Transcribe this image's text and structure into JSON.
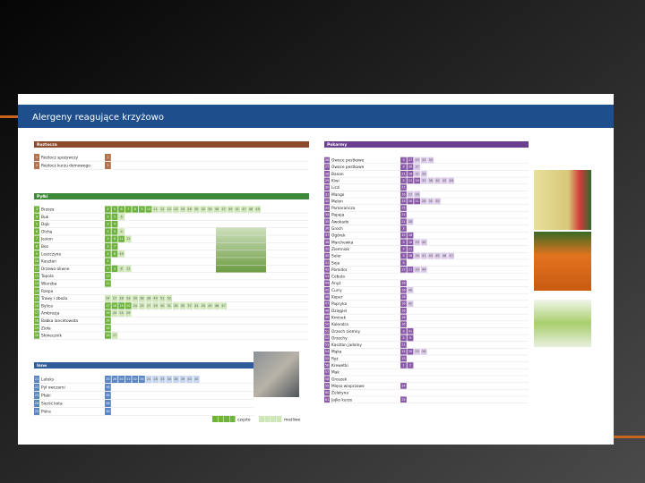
{
  "document": {
    "title": "Alergeny reagujące krzyżowo",
    "legend": {
      "often": "często",
      "possible": "możliwe"
    },
    "sections": [
      {
        "title": "Roztocza",
        "color": "#8b4a2b",
        "often_color": "#b5724a",
        "possible_color": "#e3c7b4",
        "rows": [
          {
            "no": 1,
            "name": "Roztocz spożywczy",
            "often": [
              2
            ],
            "possible": []
          },
          {
            "no": 2,
            "name": "Roztocz kurzu domowego",
            "often": [
              1
            ],
            "possible": []
          }
        ]
      },
      {
        "title": "Pyłki",
        "color": "#3f8a3a",
        "often_color": "#6fb33f",
        "possible_color": "#cfe6b8",
        "rows": [
          {
            "no": 3,
            "name": "Brzoza",
            "often": [
              4,
              5,
              6,
              7,
              8,
              9,
              10
            ],
            "possible": [
              11,
              12,
              13,
              23,
              24,
              26,
              30,
              32,
              35,
              36,
              37,
              39,
              41,
              47,
              48,
              49
            ]
          },
          {
            "no": 4,
            "name": "Buk",
            "often": [
              3,
              5
            ],
            "possible": [
              6
            ]
          },
          {
            "no": 5,
            "name": "Dąb",
            "often": [
              3,
              4
            ],
            "possible": []
          },
          {
            "no": 6,
            "name": "Olcha",
            "often": [
              3,
              9
            ],
            "possible": [
              4
            ]
          },
          {
            "no": 7,
            "name": "Jesion",
            "often": [
              3,
              8,
              11
            ],
            "possible": [
              12
            ]
          },
          {
            "no": 8,
            "name": "Bez",
            "often": [
              3,
              7
            ],
            "possible": []
          },
          {
            "no": 9,
            "name": "Leszczyna",
            "often": [
              3,
              6
            ],
            "possible": [
              49
            ]
          },
          {
            "no": 10,
            "name": "Kasztan",
            "often": [
              3
            ],
            "possible": []
          },
          {
            "no": 11,
            "name": "Drzewo oliwne",
            "often": [
              7,
              3
            ],
            "possible": [
              8,
              12
            ]
          },
          {
            "no": 12,
            "name": "Topola",
            "often": [
              13
            ],
            "possible": []
          },
          {
            "no": 13,
            "name": "Wierzba",
            "often": [
              12
            ],
            "possible": []
          },
          {
            "no": 14,
            "name": "Rzepa",
            "often": [],
            "possible": []
          },
          {
            "no": 15,
            "name": "Trawy / zboża",
            "often": [],
            "possible": [
              24,
              27,
              28,
              33,
              34,
              38,
              39,
              40,
              51,
              52
            ]
          },
          {
            "no": 16,
            "name": "Bylica",
            "often": [
              17,
              18,
              19,
              20
            ],
            "possible": [
              24,
              25,
              27,
              29,
              30,
              31,
              34,
              35,
              37,
              41,
              43,
              45,
              46,
              47
            ]
          },
          {
            "no": 17,
            "name": "Ambrozja",
            "often": [
              16
            ],
            "possible": [
              20,
              25,
              29
            ]
          },
          {
            "no": 18,
            "name": "Babka lancetowata",
            "often": [
              16
            ],
            "possible": []
          },
          {
            "no": 19,
            "name": "Zioła",
            "often": [
              16
            ],
            "possible": []
          },
          {
            "no": 20,
            "name": "Słonecznik",
            "often": [
              16
            ],
            "possible": [
              17
            ]
          }
        ]
      },
      {
        "title": "Inne",
        "color": "#2f5d9a",
        "often_color": "#5a86c4",
        "possible_color": "#c6d6ee",
        "rows": [
          {
            "no": 21,
            "name": "Lateks",
            "often": [
              25,
              26,
              30,
              31,
              32,
              36
            ],
            "possible": [
              24,
              28,
              33,
              34,
              38,
              39,
              40,
              45
            ]
          },
          {
            "no": 22,
            "name": "Pył owczarni",
            "often": [
              56
            ],
            "possible": []
          },
          {
            "no": 23,
            "name": "Ptaki",
            "often": [
              58
            ],
            "possible": []
          },
          {
            "no": 24,
            "name": "Sierść kota",
            "often": [
              56
            ],
            "possible": []
          },
          {
            "no": 25,
            "name": "Pióra",
            "often": [
              58
            ],
            "possible": []
          }
        ]
      },
      {
        "title": "Pokarmy",
        "color": "#6a3f8f",
        "often_color": "#8a5aa8",
        "possible_color": "#d9c8e8",
        "rows": [
          {
            "no": 26,
            "name": "Owoce pestkowe",
            "often": [
              3,
              27
            ],
            "possible": [
              29,
              33,
              35
            ]
          },
          {
            "no": 27,
            "name": "Owoce pestkowe",
            "often": [
              3,
              26
            ],
            "possible": [
              37
            ]
          },
          {
            "no": 28,
            "name": "Banan",
            "often": [
              21,
              16
            ],
            "possible": [
              31,
              33
            ]
          },
          {
            "no": 29,
            "name": "Kiwi",
            "often": [
              3,
              21,
              16
            ],
            "possible": [
              32,
              36,
              40,
              43,
              48
            ]
          },
          {
            "no": 30,
            "name": "Liczi",
            "often": [
              21
            ],
            "possible": []
          },
          {
            "no": 31,
            "name": "Mango",
            "often": [
              16
            ],
            "possible": [
              21,
              28
            ]
          },
          {
            "no": 32,
            "name": "Melon",
            "often": [
              15,
              16,
              21
            ],
            "possible": [
              28,
              31,
              35
            ]
          },
          {
            "no": 33,
            "name": "Pomarańcza",
            "often": [
              15
            ],
            "possible": []
          },
          {
            "no": 34,
            "name": "Papaja",
            "often": [
              21
            ],
            "possible": []
          },
          {
            "no": 35,
            "name": "Awokado",
            "often": [
              21
            ],
            "possible": [
              28
            ]
          },
          {
            "no": 36,
            "name": "Groch",
            "often": [
              3
            ],
            "possible": []
          },
          {
            "no": 37,
            "name": "Ogórek",
            "often": [
              15,
              16
            ],
            "possible": []
          },
          {
            "no": 38,
            "name": "Marchewka",
            "often": [
              3,
              16
            ],
            "possible": [
              39,
              40
            ]
          },
          {
            "no": 39,
            "name": "Ziemniak",
            "often": [
              3,
              21
            ],
            "possible": []
          },
          {
            "no": 40,
            "name": "Seler",
            "often": [
              3,
              16
            ],
            "possible": [
              38,
              41,
              43,
              45,
              46,
              47
            ]
          },
          {
            "no": 41,
            "name": "Soja",
            "often": [
              3
            ],
            "possible": []
          },
          {
            "no": 42,
            "name": "Pomidor",
            "often": [
              15,
              21
            ],
            "possible": [
              39,
              44
            ]
          },
          {
            "no": 43,
            "name": "Cebula",
            "often": [],
            "possible": []
          },
          {
            "no": 44,
            "name": "Anyż",
            "often": [
              16
            ],
            "possible": []
          },
          {
            "no": 45,
            "name": "Curry",
            "often": [
              16
            ],
            "possible": [
              40
            ]
          },
          {
            "no": 46,
            "name": "Koper",
            "often": [
              16
            ],
            "possible": []
          },
          {
            "no": 47,
            "name": "Papryka",
            "often": [
              16
            ],
            "possible": [
              42
            ]
          },
          {
            "no": 48,
            "name": "Dzięgiel",
            "often": [
              16
            ],
            "possible": []
          },
          {
            "no": 49,
            "name": "Kminek",
            "often": [
              16
            ],
            "possible": []
          },
          {
            "no": 50,
            "name": "Kolendra",
            "often": [
              16
            ],
            "possible": []
          },
          {
            "no": 51,
            "name": "Orzech ziemny",
            "often": [
              3,
              41
            ],
            "possible": []
          },
          {
            "no": 52,
            "name": "Orzechy",
            "often": [
              3,
              9
            ],
            "possible": []
          },
          {
            "no": 53,
            "name": "Kasztan jadalny",
            "often": [
              21
            ],
            "possible": []
          },
          {
            "no": 54,
            "name": "Mąka",
            "often": [
              15,
              16
            ],
            "possible": [
              55,
              56
            ]
          },
          {
            "no": 55,
            "name": "Ryż",
            "often": [
              15
            ],
            "possible": []
          },
          {
            "no": 56,
            "name": "Krewetki",
            "often": [
              1,
              2
            ],
            "possible": []
          },
          {
            "no": 57,
            "name": "Mak",
            "often": [],
            "possible": []
          },
          {
            "no": 58,
            "name": "Groszek",
            "often": [],
            "possible": []
          },
          {
            "no": 59,
            "name": "Mięso wieprzowe",
            "often": [
              24
            ],
            "possible": []
          },
          {
            "no": 60,
            "name": "Żelatyna",
            "often": [],
            "possible": []
          },
          {
            "no": 61,
            "name": "Jajko kurze",
            "often": [
              25
            ],
            "possible": []
          }
        ]
      }
    ]
  }
}
